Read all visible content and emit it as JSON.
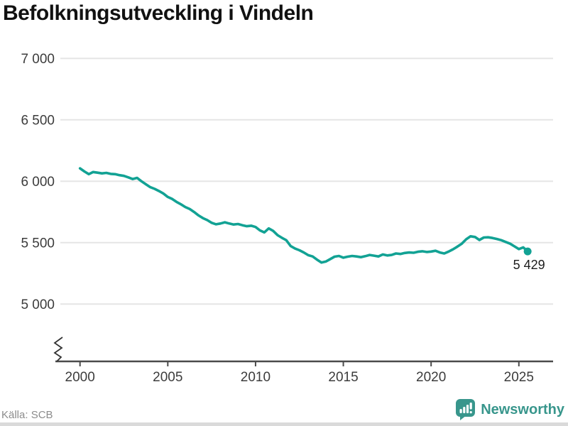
{
  "header": {
    "title": "Befolkningsutveckling i Vindeln"
  },
  "footer": {
    "source": "Källa: SCB",
    "brand": "Newsworthy"
  },
  "colors": {
    "line": "#12A294",
    "brand": "#38968C",
    "grid": "#E5E5E5",
    "axis": "#4B4B4B",
    "title": "#111111",
    "tick_label": "#3C3C3C",
    "source": "#8C8C8C",
    "end_label": "#1C1C1C",
    "bottom_bar": "#DADADA"
  },
  "chart_data": {
    "type": "line",
    "title": "Befolkningsutveckling i Vindeln",
    "xlabel": "",
    "ylabel": "",
    "xlim": [
      1999,
      2027
    ],
    "ylim": [
      5000,
      7000
    ],
    "grid": true,
    "legend": false,
    "y_axis_break": true,
    "end_value": 5429,
    "end_label": "5 429",
    "y_ticks": [
      {
        "value": 7000,
        "label": "7 000"
      },
      {
        "value": 6500,
        "label": "6 500"
      },
      {
        "value": 6000,
        "label": "6 000"
      },
      {
        "value": 5500,
        "label": "5 500"
      },
      {
        "value": 5000,
        "label": "5 000"
      }
    ],
    "x_ticks": [
      {
        "value": 2000,
        "label": "2000"
      },
      {
        "value": 2005,
        "label": "2005"
      },
      {
        "value": 2010,
        "label": "2010"
      },
      {
        "value": 2015,
        "label": "2015"
      },
      {
        "value": 2020,
        "label": "2020"
      },
      {
        "value": 2025,
        "label": "2025"
      }
    ],
    "x": [
      2000,
      2000.25,
      2000.5,
      2000.75,
      2001,
      2001.25,
      2001.5,
      2001.75,
      2002,
      2002.25,
      2002.5,
      2002.75,
      2003,
      2003.25,
      2003.5,
      2003.75,
      2004,
      2004.25,
      2004.5,
      2004.75,
      2005,
      2005.25,
      2005.5,
      2005.75,
      2006,
      2006.25,
      2006.5,
      2006.75,
      2007,
      2007.25,
      2007.5,
      2007.75,
      2008,
      2008.25,
      2008.5,
      2008.75,
      2009,
      2009.25,
      2009.5,
      2009.75,
      2010,
      2010.25,
      2010.5,
      2010.75,
      2011,
      2011.25,
      2011.5,
      2011.75,
      2012,
      2012.25,
      2012.5,
      2012.75,
      2013,
      2013.25,
      2013.5,
      2013.75,
      2014,
      2014.25,
      2014.5,
      2014.75,
      2015,
      2015.25,
      2015.5,
      2015.75,
      2016,
      2016.25,
      2016.5,
      2016.75,
      2017,
      2017.25,
      2017.5,
      2017.75,
      2018,
      2018.25,
      2018.5,
      2018.75,
      2019,
      2019.25,
      2019.5,
      2019.75,
      2020,
      2020.25,
      2020.5,
      2020.75,
      2021,
      2021.25,
      2021.5,
      2021.75,
      2022,
      2022.25,
      2022.5,
      2022.75,
      2023,
      2023.25,
      2023.5,
      2023.75,
      2024,
      2024.25,
      2024.5,
      2024.75,
      2025,
      2025.25,
      2025.5
    ],
    "values": [
      6105,
      6080,
      6058,
      6075,
      6070,
      6064,
      6068,
      6060,
      6058,
      6050,
      6044,
      6032,
      6018,
      6028,
      6000,
      5976,
      5952,
      5938,
      5920,
      5900,
      5872,
      5856,
      5832,
      5812,
      5790,
      5774,
      5750,
      5722,
      5700,
      5684,
      5662,
      5650,
      5656,
      5666,
      5656,
      5648,
      5652,
      5642,
      5634,
      5638,
      5628,
      5600,
      5584,
      5616,
      5596,
      5562,
      5540,
      5520,
      5472,
      5452,
      5438,
      5420,
      5398,
      5388,
      5362,
      5338,
      5346,
      5366,
      5386,
      5392,
      5378,
      5386,
      5392,
      5388,
      5382,
      5390,
      5400,
      5394,
      5388,
      5404,
      5396,
      5400,
      5412,
      5408,
      5416,
      5420,
      5418,
      5426,
      5430,
      5424,
      5428,
      5434,
      5420,
      5412,
      5428,
      5446,
      5468,
      5492,
      5528,
      5552,
      5546,
      5522,
      5542,
      5544,
      5538,
      5530,
      5520,
      5506,
      5492,
      5470,
      5448,
      5462,
      5429
    ]
  }
}
